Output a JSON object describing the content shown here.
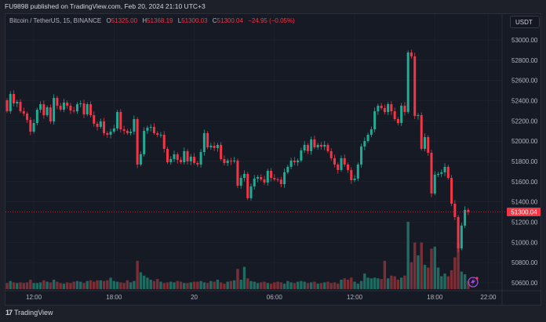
{
  "header": {
    "published": "FU9898 published on TradingView.com, Feb 20, 2024 21:10 UTC+3"
  },
  "legend": {
    "symbol": "Bitcoin / TetherUS, 15, BINANCE",
    "o_label": "O",
    "o": "51325.00",
    "h_label": "H",
    "h": "51368.19",
    "l_label": "L",
    "l": "51300.03",
    "c_label": "C",
    "c": "51300.04",
    "change": "−24.95 (−0.05%)"
  },
  "currency_button": "USDT",
  "last_price": "51300.04",
  "footer": {
    "brand": "TradingView",
    "logo": "17"
  },
  "colors": {
    "up": "#22ab94",
    "down": "#f23645",
    "up_vol": "#1f6b61",
    "down_vol": "#7a2f36",
    "bg": "#161a25",
    "grid": "#222631"
  },
  "chart_data": {
    "type": "candlestick",
    "title": "Bitcoin / TetherUS, 15, BINANCE",
    "ylim": [
      50550,
      53100
    ],
    "price_ticks": [
      "53000.00",
      "52800.00",
      "52600.00",
      "52400.00",
      "52200.00",
      "52000.00",
      "51800.00",
      "51600.00",
      "51400.00",
      "51200.00",
      "51000.00",
      "50800.00",
      "50600.00"
    ],
    "time_ticks": [
      {
        "label": "12:00",
        "index": 8
      },
      {
        "label": "18:00",
        "index": 32
      },
      {
        "label": "20",
        "index": 56
      },
      {
        "label": "06:00",
        "index": 80
      },
      {
        "label": "12:00",
        "index": 104
      },
      {
        "label": "18:00",
        "index": 128
      },
      {
        "label": "22:00",
        "index": 144
      }
    ],
    "first_open": 52404,
    "closes": [
      52295,
      52466,
      52373,
      52388,
      52295,
      52272,
      52210,
      52094,
      52179,
      52311,
      52365,
      52257,
      52334,
      52195,
      52427,
      52350,
      52311,
      52381,
      52350,
      52303,
      52295,
      52365,
      52373,
      52264,
      52365,
      52257,
      52172,
      52141,
      52195,
      52079,
      52063,
      52094,
      52125,
      52288,
      52117,
      52102,
      52079,
      52094,
      52218,
      51769,
      51870,
      52102,
      52133,
      52141,
      52079,
      52063,
      52063,
      51924,
      51792,
      51823,
      51870,
      51815,
      51792,
      51901,
      51800,
      51846,
      51784,
      51769,
      51893,
      52079,
      51939,
      51955,
      51932,
      51963,
      51823,
      51784,
      51808,
      51800,
      51808,
      51560,
      51637,
      51676,
      51436,
      51552,
      51630,
      51645,
      51622,
      51591,
      51707,
      51637,
      51622,
      51620,
      51575,
      51692,
      51746,
      51808,
      51792,
      51808,
      51908,
      51963,
      51901,
      52017,
      51939,
      51963,
      51947,
      51963,
      51901,
      51831,
      51769,
      51715,
      51831,
      51769,
      51715,
      51614,
      51630,
      51769,
      51947,
      52001,
      52063,
      52117,
      52295,
      52350,
      52326,
      52288,
      52365,
      52295,
      52218,
      52179,
      52350,
      52288,
      52876,
      52838,
      52249,
      52257,
      51924,
      52040,
      51885,
      51483,
      51668,
      51676,
      51692,
      51746,
      51637,
      51382,
      51250,
      50940,
      51165,
      51320,
      51300.04
    ],
    "volumes": [
      9,
      12,
      10,
      9,
      10,
      9,
      10,
      14,
      9,
      9,
      10,
      13,
      11,
      10,
      14,
      11,
      9,
      8,
      10,
      9,
      11,
      12,
      11,
      9,
      12,
      13,
      11,
      13,
      13,
      12,
      13,
      17,
      12,
      11,
      10,
      9,
      13,
      10,
      12,
      42,
      25,
      20,
      17,
      14,
      12,
      15,
      11,
      9,
      10,
      11,
      10,
      12,
      11,
      9,
      9,
      10,
      11,
      11,
      12,
      10,
      9,
      12,
      11,
      14,
      10,
      8,
      11,
      12,
      13,
      30,
      14,
      33,
      16,
      12,
      11,
      9,
      10,
      11,
      9,
      8,
      10,
      11,
      10,
      8,
      12,
      10,
      9,
      11,
      12,
      11,
      9,
      10,
      11,
      8,
      9,
      10,
      11,
      9,
      10,
      8,
      14,
      16,
      14,
      17,
      11,
      8,
      12,
      23,
      17,
      16,
      17,
      16,
      15,
      42,
      16,
      20,
      19,
      14,
      17,
      20,
      100,
      40,
      69,
      50,
      69,
      36,
      32,
      60,
      63,
      32,
      19,
      23,
      19,
      28,
      47,
      68,
      26,
      22,
      12
    ]
  }
}
